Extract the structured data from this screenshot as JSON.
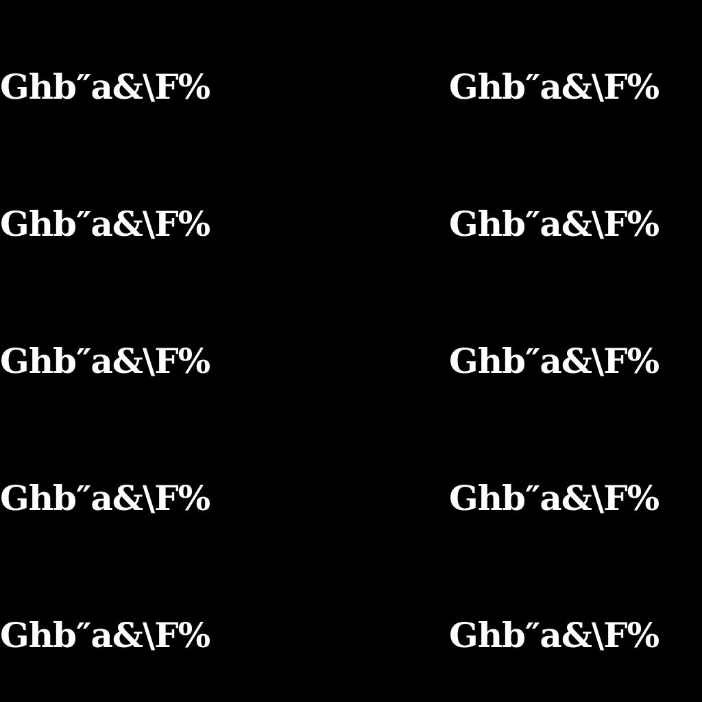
{
  "colors": {
    "background": "#000000",
    "text": "#ffffff"
  },
  "samples": {
    "left": [
      "Ghb″a&\\F%",
      "Ghb″a&\\F%",
      "Ghb″a&\\F%",
      "Ghb″a&\\F%",
      "Ghb″a&\\F%"
    ],
    "right": [
      "Ghb″a&\\F%",
      "Ghb″a&\\F%",
      "Ghb″a&\\F%",
      "Ghb″a&\\F%",
      "Ghb″a&\\F%"
    ]
  }
}
